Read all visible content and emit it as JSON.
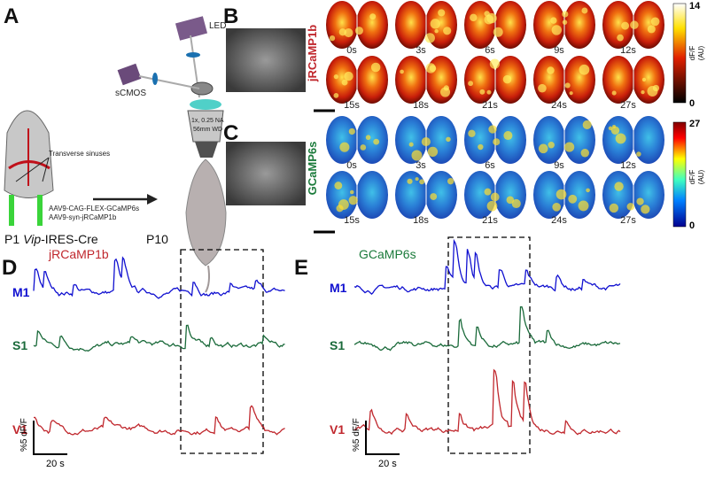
{
  "panel_a": {
    "label": "A",
    "sinus_label": "Transverse sinuses",
    "virus_1": "AAV9-CAG-FLEX-GCaMP6s",
    "virus_2": "AAV9-syn-jRCaMP1b",
    "mouse_line": {
      "prefix": "P1",
      "gene": "Vip",
      "suffix": "-IRES-Cre"
    },
    "age": "P10",
    "led": "LED",
    "camera": "sCMOS",
    "lens_1": "1x, 0.25 NA",
    "lens_2": "56mm WD"
  },
  "panel_b": {
    "label": "B",
    "indicator": "jRCaMP1b",
    "times": [
      "0s",
      "3s",
      "6s",
      "9s",
      "12s",
      "15s",
      "18s",
      "21s",
      "24s",
      "27s"
    ],
    "cbar_max": "14",
    "cbar_min": "0",
    "cbar_label_1": "dF/F",
    "cbar_label_2": "(AU)"
  },
  "panel_c": {
    "label": "C",
    "indicator": "GCaMP6s",
    "times": [
      "0s",
      "3s",
      "6s",
      "9s",
      "12s",
      "15s",
      "18s",
      "21s",
      "24s",
      "27s"
    ],
    "cbar_max": "27",
    "cbar_min": "0",
    "cbar_label_1": "dF/F",
    "cbar_label_2": "(AU)"
  },
  "panel_d": {
    "label": "D",
    "indicator": "jRCaMP1b",
    "regions": [
      "M1",
      "S1",
      "V1"
    ],
    "scale_y": "%5 dF/F",
    "scale_x": "20 s"
  },
  "panel_e": {
    "label": "E",
    "indicator": "GCaMP6s",
    "regions": [
      "M1",
      "S1",
      "V1"
    ],
    "scale_y": "%5 dF/F",
    "scale_x": "20 s"
  }
}
